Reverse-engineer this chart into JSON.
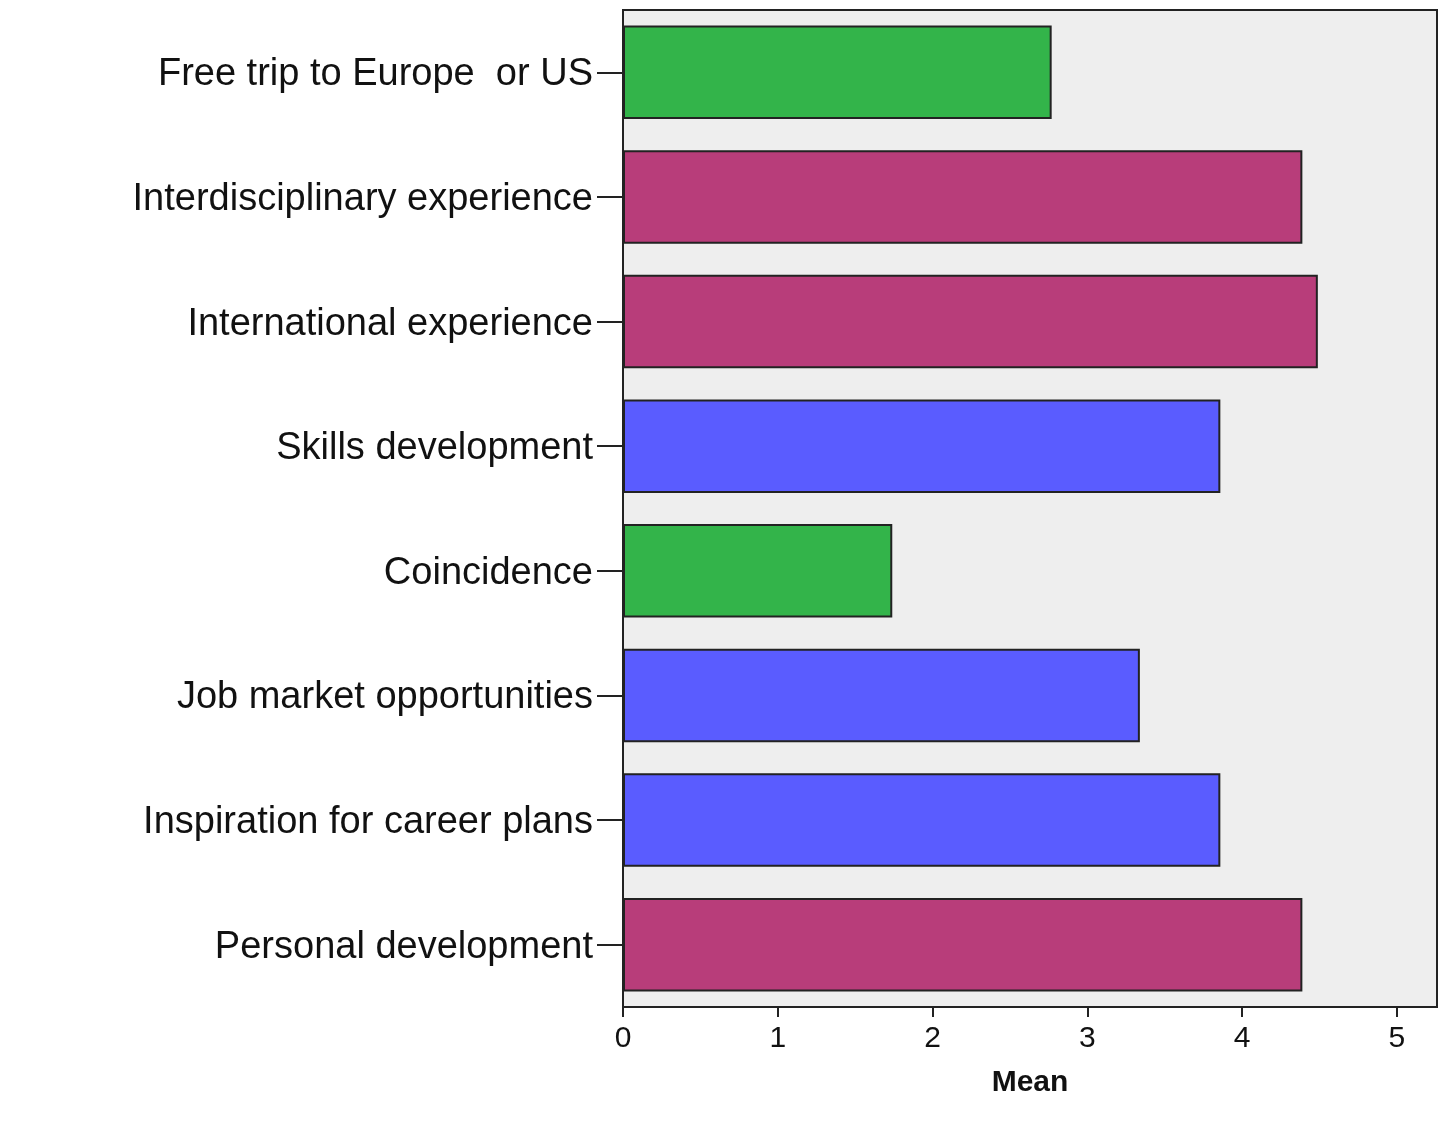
{
  "chart_data": {
    "type": "bar",
    "orientation": "horizontal",
    "xlabel": "Mean",
    "categories": [
      "Free trip to Europe  or US",
      "Interdisciplinary experience",
      "International experience",
      "Skills development",
      "Coincidence",
      "Job market opportunities",
      "Inspiration for career plans",
      "Personal development"
    ],
    "values": [
      2.77,
      4.39,
      4.49,
      3.86,
      1.74,
      3.34,
      3.86,
      4.39
    ],
    "colors": [
      "#33b44a",
      "#b83d7a",
      "#b83d7a",
      "#5a5cff",
      "#33b44a",
      "#5a5cff",
      "#5a5cff",
      "#b83d7a"
    ],
    "xlim": [
      0,
      5.26
    ],
    "xticks": [
      0,
      1,
      2,
      3,
      4,
      5
    ],
    "grid": false
  }
}
